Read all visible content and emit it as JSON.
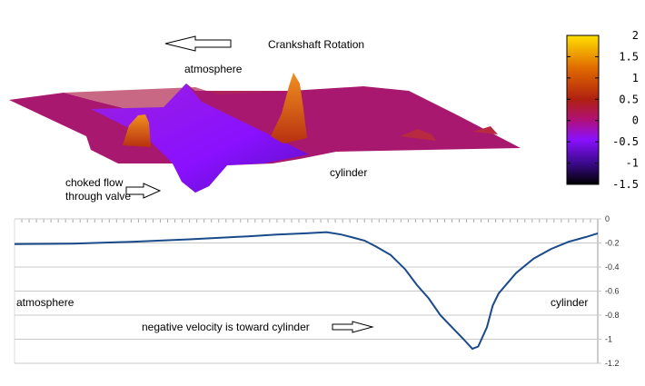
{
  "chart_data": [
    {
      "type": "surface",
      "annotations": {
        "rotation": "Crankshaft Rotation",
        "atmosphere": "atmosphere",
        "cylinder": "cylinder",
        "choked_line1": "choked flow",
        "choked_line2": "through valve"
      },
      "colorbar": {
        "ticks": [
          "2",
          "1.5",
          "1",
          "0.5",
          "0",
          "-0.5",
          "-1",
          "-1.5"
        ],
        "range": [
          -1.5,
          2
        ],
        "colors": [
          "#000000",
          "#3a0a8a",
          "#8a10ff",
          "#b0107a",
          "#b02010",
          "#e06a00",
          "#ffe000"
        ]
      }
    },
    {
      "type": "line",
      "xlabel": "",
      "ylabel": "",
      "ylim": [
        -1.2,
        0
      ],
      "yticks": [
        "0",
        "-0.2",
        "-0.4",
        "-0.6",
        "-0.8",
        "-1",
        "-1.2"
      ],
      "grid": true,
      "line_color": "#1a4a8a",
      "annotations": {
        "left": "atmosphere",
        "right": "cylinder",
        "note": "negative velocity is toward cylinder"
      },
      "x": [
        0,
        0.1,
        0.2,
        0.3,
        0.4,
        0.45,
        0.5,
        0.535,
        0.56,
        0.58,
        0.6,
        0.62,
        0.645,
        0.67,
        0.69,
        0.71,
        0.73,
        0.75,
        0.77,
        0.785,
        0.795,
        0.81,
        0.82,
        0.83,
        0.86,
        0.89,
        0.92,
        0.95,
        0.98,
        1
      ],
      "y": [
        -0.21,
        -0.205,
        -0.19,
        -0.17,
        -0.145,
        -0.13,
        -0.12,
        -0.11,
        -0.13,
        -0.155,
        -0.18,
        -0.23,
        -0.3,
        -0.42,
        -0.55,
        -0.66,
        -0.8,
        -0.9,
        -1.0,
        -1.08,
        -1.06,
        -0.9,
        -0.72,
        -0.62,
        -0.45,
        -0.33,
        -0.25,
        -0.19,
        -0.15,
        -0.12
      ]
    }
  ]
}
